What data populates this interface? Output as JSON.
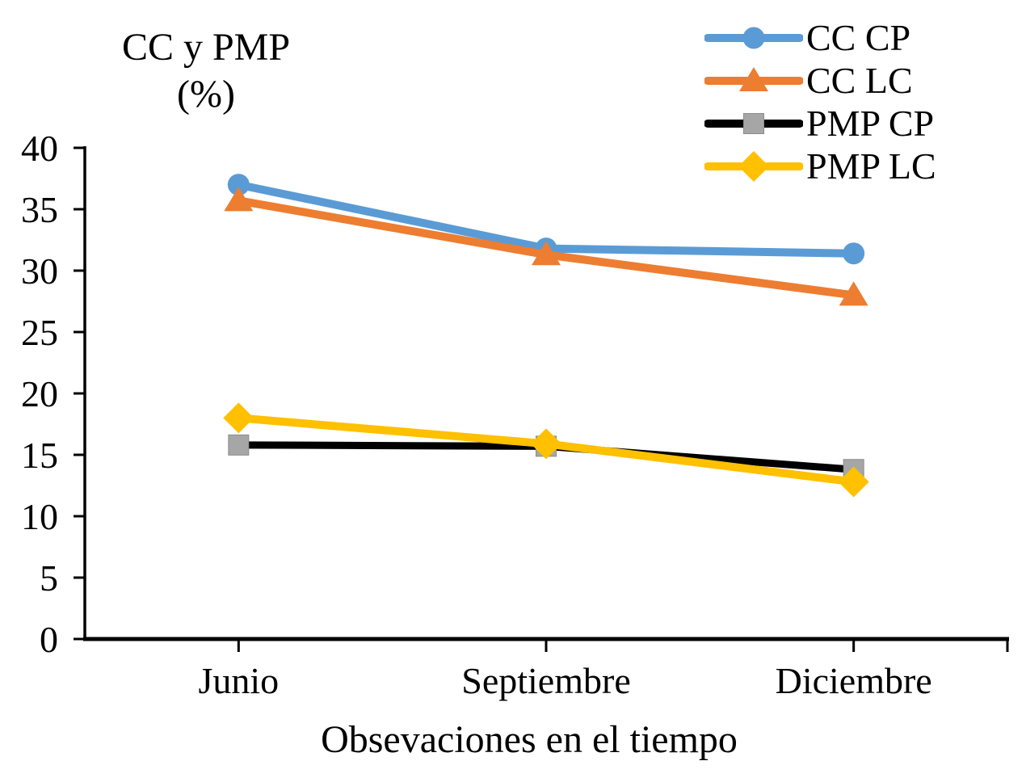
{
  "chart_data": {
    "type": "line",
    "title": "",
    "y_axis_title_lines": [
      "CC y PMP",
      "(%)"
    ],
    "x_axis_title": "Obsevaciones en el tiempo",
    "categories": [
      "Junio",
      "Septiembre",
      "Diciembre"
    ],
    "y_ticks": [
      0,
      5,
      10,
      15,
      20,
      25,
      30,
      35,
      40
    ],
    "ylim": [
      0,
      40
    ],
    "grid": false,
    "legend_position": "top-right",
    "axis_color": "#000000",
    "series": [
      {
        "name": "CC CP",
        "marker": "circle",
        "color": "#5B9BD5",
        "marker_color": "#5B9BD5",
        "values": [
          37.0,
          31.8,
          31.4
        ]
      },
      {
        "name": "CC LC",
        "marker": "triangle",
        "color": "#ED7D31",
        "marker_color": "#ED7D31",
        "values": [
          35.7,
          31.3,
          28.0
        ]
      },
      {
        "name": "PMP CP",
        "marker": "square",
        "color": "#000000",
        "marker_color": "#A6A6A6",
        "values": [
          15.8,
          15.7,
          13.8
        ]
      },
      {
        "name": "PMP LC",
        "marker": "diamond",
        "color": "#FFC000",
        "marker_color": "#FFC000",
        "values": [
          18.0,
          15.9,
          12.8
        ]
      }
    ]
  }
}
